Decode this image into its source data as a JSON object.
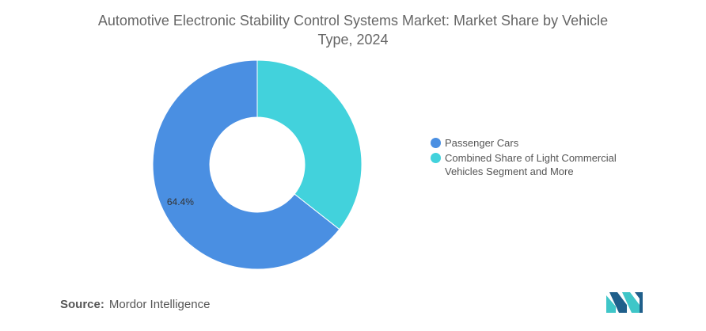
{
  "chart_data": {
    "type": "pie",
    "title": "Automotive Electronic Stability Control Systems Market: Market Share by Vehicle Type, 2024",
    "donut": true,
    "slices": [
      {
        "label": "Passenger Cars",
        "value": 64.4,
        "color": "#4a8fe2",
        "data_label": "64.4%"
      },
      {
        "label": "Combined Share of Light Commercial Vehicles Segment and More",
        "value": 35.6,
        "color": "#42d2dc",
        "data_label": ""
      }
    ],
    "legend_position": "right"
  },
  "source": {
    "label": "Source:",
    "text": "Mordor Intelligence"
  },
  "logo": {
    "icon": "mordor-intelligence-logo",
    "colors": [
      "#1f5f8b",
      "#3fc6c8"
    ]
  }
}
